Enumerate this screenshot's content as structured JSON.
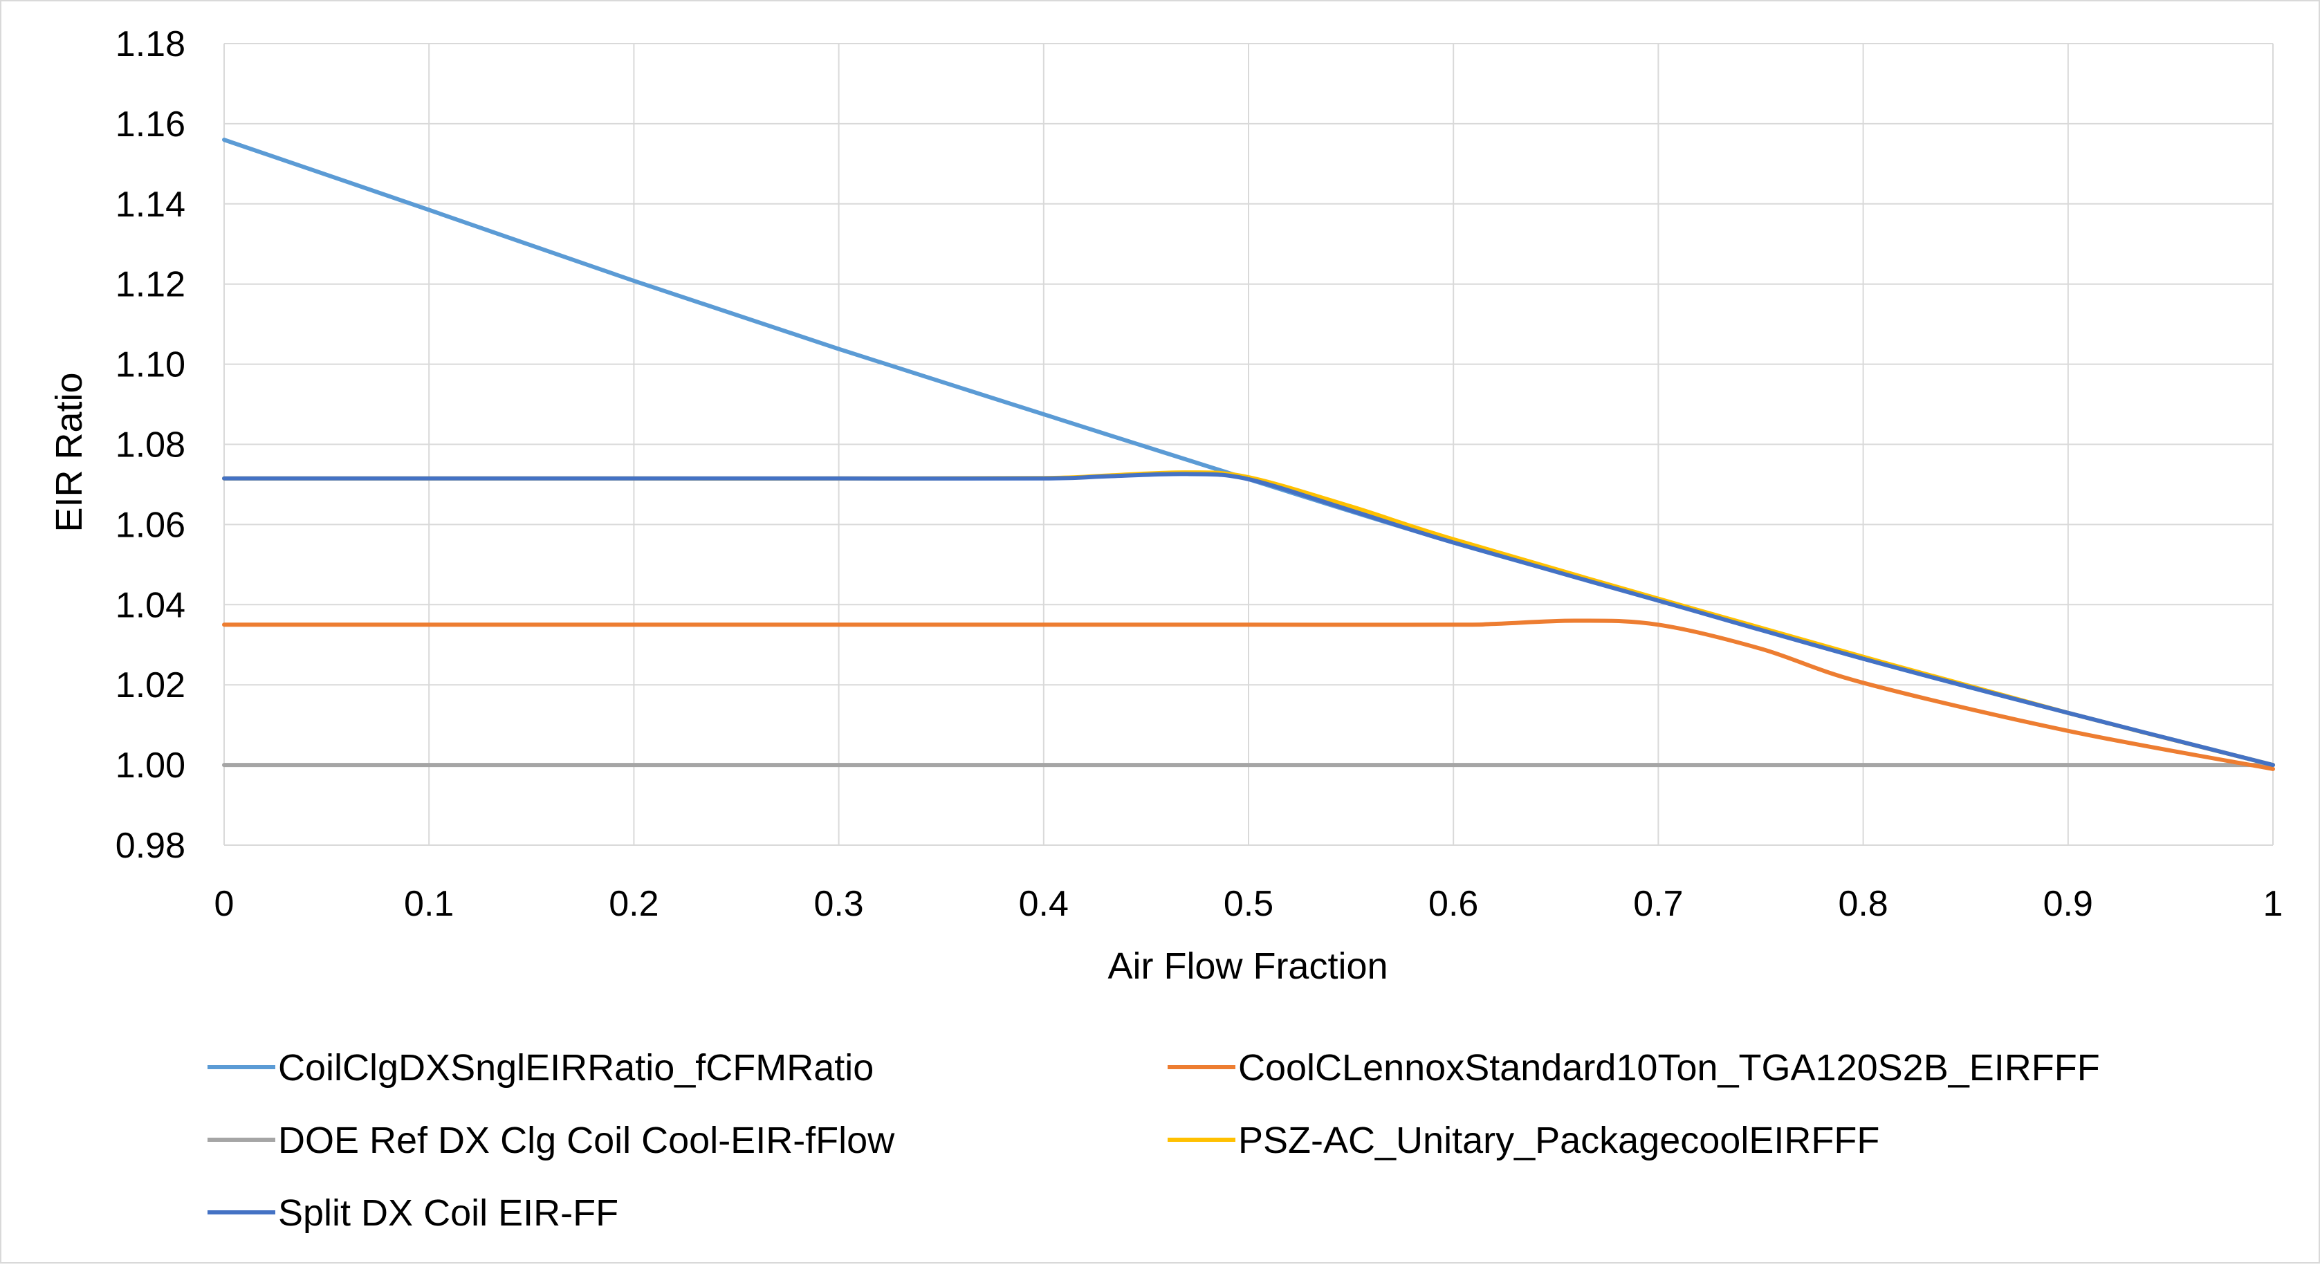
{
  "chart_data": {
    "type": "line",
    "title": "",
    "xlabel": "Air Flow Fraction",
    "ylabel": "EIR Ratio",
    "xlim": [
      0,
      1
    ],
    "ylim": [
      0.98,
      1.18
    ],
    "x_ticks": [
      0,
      0.1,
      0.2,
      0.3,
      0.4,
      0.5,
      0.6,
      0.7,
      0.8,
      0.9,
      1
    ],
    "x_tick_labels": [
      "0",
      "0.1",
      "0.2",
      "0.3",
      "0.4",
      "0.5",
      "0.6",
      "0.7",
      "0.8",
      "0.9",
      "1"
    ],
    "y_ticks": [
      0.98,
      1.0,
      1.02,
      1.04,
      1.06,
      1.08,
      1.1,
      1.12,
      1.14,
      1.16,
      1.18
    ],
    "y_tick_labels": [
      "0.98",
      "1.00",
      "1.02",
      "1.04",
      "1.06",
      "1.08",
      "1.10",
      "1.12",
      "1.14",
      "1.16",
      "1.18"
    ],
    "grid": true,
    "legend_position": "bottom",
    "series": [
      {
        "name": "CoilClgDXSnglEIRRatio_fCFMRatio",
        "color": "#5B9BD5",
        "x": [
          0,
          0.1,
          0.2,
          0.3,
          0.4,
          0.5,
          0.6,
          0.7,
          0.8,
          0.9,
          1
        ],
        "y": [
          1.156,
          1.1385,
          1.1208,
          1.1038,
          1.0875,
          1.0713,
          1.0555,
          1.0412,
          1.0265,
          1.013,
          1.0
        ]
      },
      {
        "name": "CoolCLennoxStandard10Ton_TGA120S2B_EIRFFF",
        "color": "#ED7D31",
        "x": [
          0,
          0.1,
          0.2,
          0.3,
          0.4,
          0.5,
          0.6,
          0.62,
          0.66,
          0.7,
          0.75,
          0.8,
          0.9,
          1
        ],
        "y": [
          1.035,
          1.035,
          1.035,
          1.035,
          1.035,
          1.035,
          1.035,
          1.0352,
          1.036,
          1.035,
          1.029,
          1.0205,
          1.0085,
          0.999
        ]
      },
      {
        "name": "DOE Ref DX Clg Coil Cool-EIR-fFlow",
        "color": "#A5A5A5",
        "x": [
          0,
          0.1,
          0.2,
          0.3,
          0.4,
          0.5,
          0.6,
          0.7,
          0.8,
          0.9,
          1
        ],
        "y": [
          1.0,
          1.0,
          1.0,
          1.0,
          1.0,
          1.0,
          1.0,
          1.0,
          1.0,
          1.0,
          1.0
        ]
      },
      {
        "name": "PSZ-AC_Unitary_PackagecoolEIRFFF",
        "color": "#FFC000",
        "x": [
          0,
          0.1,
          0.2,
          0.3,
          0.4,
          0.43,
          0.47,
          0.5,
          0.55,
          0.6,
          0.7,
          0.8,
          0.9,
          1
        ],
        "y": [
          1.0715,
          1.0715,
          1.0715,
          1.0715,
          1.0716,
          1.0722,
          1.073,
          1.0718,
          1.0645,
          1.0563,
          1.0415,
          1.027,
          1.013,
          1.0
        ]
      },
      {
        "name": "Split DX Coil EIR-FF",
        "color": "#4472C4",
        "x": [
          0,
          0.1,
          0.2,
          0.3,
          0.4,
          0.43,
          0.47,
          0.5,
          0.55,
          0.6,
          0.7,
          0.8,
          0.9,
          1
        ],
        "y": [
          1.0715,
          1.0715,
          1.0715,
          1.0715,
          1.0715,
          1.072,
          1.0726,
          1.0713,
          1.0635,
          1.0555,
          1.041,
          1.0265,
          1.013,
          1.0
        ]
      }
    ]
  }
}
